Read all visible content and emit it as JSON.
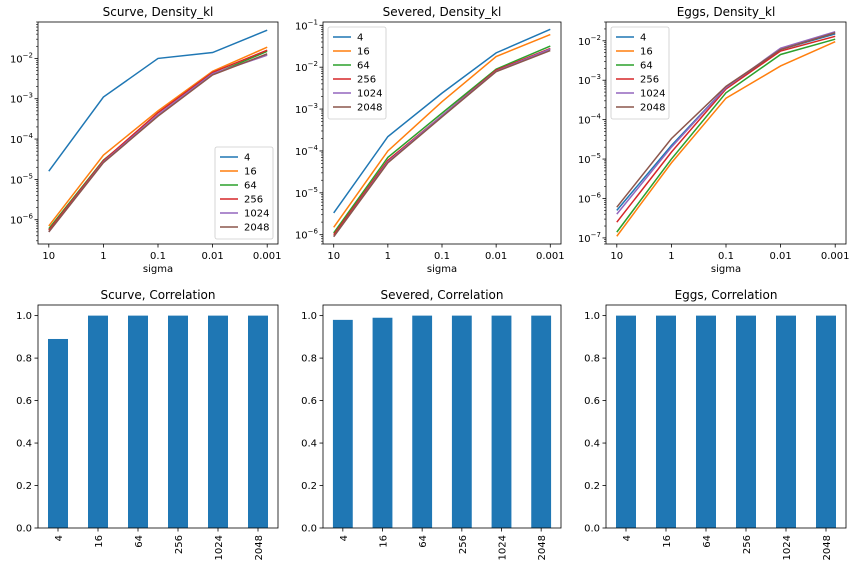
{
  "chart_data": [
    {
      "type": "line",
      "title": "Scurve, Density_kl",
      "xlabel": "sigma",
      "ylabel": "",
      "yscale": "log",
      "ylim": [
        2.5e-07,
        0.08
      ],
      "categories": [
        "10",
        "1",
        "0.1",
        "0.01",
        "0.001"
      ],
      "yticks": [
        {
          "value": 1e-06,
          "base": "10",
          "exp": "−6"
        },
        {
          "value": 1e-05,
          "base": "10",
          "exp": "−5"
        },
        {
          "value": 0.0001,
          "base": "10",
          "exp": "−4"
        },
        {
          "value": 0.001,
          "base": "10",
          "exp": "−3"
        },
        {
          "value": 0.01,
          "base": "10",
          "exp": "−2"
        }
      ],
      "legend_position": "lower-right",
      "series": [
        {
          "name": "4",
          "values": [
            1.6e-05,
            0.0011,
            0.01,
            0.014,
            0.05
          ]
        },
        {
          "name": "16",
          "values": [
            7e-07,
            4e-05,
            0.0005,
            0.0048,
            0.019
          ]
        },
        {
          "name": "64",
          "values": [
            6e-07,
            3e-05,
            0.00038,
            0.004,
            0.015
          ]
        },
        {
          "name": "256",
          "values": [
            5.5e-07,
            2.9e-05,
            0.00045,
            0.0045,
            0.016
          ]
        },
        {
          "name": "1024",
          "values": [
            5e-07,
            2.7e-05,
            0.0004,
            0.0042,
            0.012
          ]
        },
        {
          "name": "2048",
          "values": [
            5e-07,
            2.6e-05,
            0.00037,
            0.0039,
            0.013
          ]
        }
      ]
    },
    {
      "type": "line",
      "title": "Severed, Density_kl",
      "xlabel": "sigma",
      "ylabel": "",
      "yscale": "log",
      "ylim": [
        6e-07,
        0.12
      ],
      "categories": [
        "10",
        "1",
        "0.1",
        "0.01",
        "0.001"
      ],
      "yticks": [
        {
          "value": 1e-06,
          "base": "10",
          "exp": "−6"
        },
        {
          "value": 1e-05,
          "base": "10",
          "exp": "−5"
        },
        {
          "value": 0.0001,
          "base": "10",
          "exp": "−4"
        },
        {
          "value": 0.001,
          "base": "10",
          "exp": "−3"
        },
        {
          "value": 0.01,
          "base": "10",
          "exp": "−2"
        },
        {
          "value": 0.1,
          "base": "10",
          "exp": "−1"
        }
      ],
      "legend_position": "upper-left",
      "series": [
        {
          "name": "4",
          "values": [
            3.3e-06,
            0.00022,
            0.0024,
            0.022,
            0.08
          ]
        },
        {
          "name": "16",
          "values": [
            1.5e-06,
            0.0001,
            0.0015,
            0.018,
            0.06
          ]
        },
        {
          "name": "64",
          "values": [
            1.1e-06,
            7e-05,
            0.0008,
            0.009,
            0.032
          ]
        },
        {
          "name": "256",
          "values": [
            1e-06,
            6e-05,
            0.0007,
            0.0085,
            0.028
          ]
        },
        {
          "name": "1024",
          "values": [
            9e-07,
            5.5e-05,
            0.0007,
            0.008,
            0.027
          ]
        },
        {
          "name": "2048",
          "values": [
            9e-07,
            5.2e-05,
            0.00065,
            0.0078,
            0.025
          ]
        }
      ]
    },
    {
      "type": "line",
      "title": "Eggs, Density_kl",
      "xlabel": "sigma",
      "ylabel": "",
      "yscale": "log",
      "ylim": [
        7e-08,
        0.03
      ],
      "categories": [
        "10",
        "1",
        "0.1",
        "0.01",
        "0.001"
      ],
      "yticks": [
        {
          "value": 1e-07,
          "base": "10",
          "exp": "−7"
        },
        {
          "value": 1e-06,
          "base": "10",
          "exp": "−6"
        },
        {
          "value": 1e-05,
          "base": "10",
          "exp": "−5"
        },
        {
          "value": 0.0001,
          "base": "10",
          "exp": "−4"
        },
        {
          "value": 0.001,
          "base": "10",
          "exp": "−3"
        },
        {
          "value": 0.01,
          "base": "10",
          "exp": "−2"
        }
      ],
      "legend_position": "upper-left",
      "series": [
        {
          "name": "4",
          "values": [
            5e-07,
            2.2e-05,
            0.00065,
            0.006,
            0.015
          ]
        },
        {
          "name": "16",
          "values": [
            1.1e-07,
            8e-06,
            0.00035,
            0.0023,
            0.0095
          ]
        },
        {
          "name": "64",
          "values": [
            1.4e-07,
            1e-05,
            0.00048,
            0.0045,
            0.011
          ]
        },
        {
          "name": "256",
          "values": [
            2.5e-07,
            1.5e-05,
            0.0006,
            0.0055,
            0.013
          ]
        },
        {
          "name": "1024",
          "values": [
            4e-07,
            2e-05,
            0.00065,
            0.0065,
            0.017
          ]
        },
        {
          "name": "2048",
          "values": [
            6e-07,
            3.3e-05,
            0.0007,
            0.006,
            0.016
          ]
        }
      ]
    },
    {
      "type": "bar",
      "title": "Scurve, Correlation",
      "xlabel": "",
      "ylabel": "",
      "ylim": [
        0,
        1.05
      ],
      "yticks": [
        "0.0",
        "0.2",
        "0.4",
        "0.6",
        "0.8",
        "1.0"
      ],
      "categories": [
        "4",
        "16",
        "64",
        "256",
        "1024",
        "2048"
      ],
      "values": [
        0.89,
        1.0,
        1.0,
        1.0,
        1.0,
        1.0
      ]
    },
    {
      "type": "bar",
      "title": "Severed, Correlation",
      "xlabel": "",
      "ylabel": "",
      "ylim": [
        0,
        1.05
      ],
      "yticks": [
        "0.0",
        "0.2",
        "0.4",
        "0.6",
        "0.8",
        "1.0"
      ],
      "categories": [
        "4",
        "16",
        "64",
        "256",
        "1024",
        "2048"
      ],
      "values": [
        0.98,
        0.99,
        1.0,
        1.0,
        1.0,
        1.0
      ]
    },
    {
      "type": "bar",
      "title": "Eggs, Correlation",
      "xlabel": "",
      "ylabel": "",
      "ylim": [
        0,
        1.05
      ],
      "yticks": [
        "0.0",
        "0.2",
        "0.4",
        "0.6",
        "0.8",
        "1.0"
      ],
      "categories": [
        "4",
        "16",
        "64",
        "256",
        "1024",
        "2048"
      ],
      "values": [
        1.0,
        1.0,
        1.0,
        1.0,
        1.0,
        1.0
      ]
    }
  ],
  "colors": {
    "series": [
      "#1f77b4",
      "#ff7f0e",
      "#2ca02c",
      "#d62728",
      "#9467bd",
      "#8c564b"
    ],
    "bar": "#1f77b4"
  }
}
